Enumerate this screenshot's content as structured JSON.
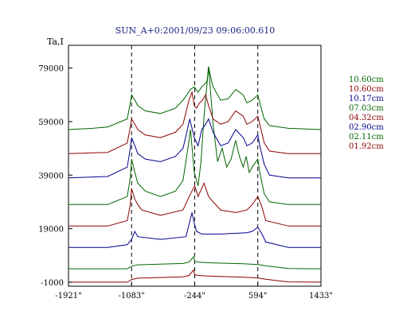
{
  "chart_data": {
    "type": "line",
    "title": "SUN_A+0:2001/09/23 09:06:00.610",
    "ylabel": "Ta,I",
    "xlabel": "",
    "x_ticks": [
      "-1921\"",
      "-1083\"",
      "-244\"",
      "594\"",
      "1433\""
    ],
    "x_tick_values": [
      -1921,
      -1083,
      -244,
      594,
      1433
    ],
    "y_ticks": [
      "79000",
      "59000",
      "39000",
      "19000",
      "-1000"
    ],
    "y_tick_values": [
      79000,
      59000,
      39000,
      19000,
      -1000
    ],
    "xlim": [
      -1921,
      1433
    ],
    "ylim": [
      -2500,
      87500
    ],
    "vlines": [
      -1083,
      -244,
      594
    ],
    "grid": false,
    "legend_position": "right",
    "series": [
      {
        "name": "01.92cm",
        "color": "#8b0000",
        "baseline": -1000,
        "x": [
          -1921,
          -1140,
          -1083,
          -1000,
          -400,
          -320,
          -260,
          -244,
          -210,
          -150,
          0,
          400,
          594,
          700,
          1000,
          1433
        ],
        "y": [
          -1000,
          -1000,
          0,
          500,
          1000,
          1500,
          3500,
          1800,
          1600,
          1400,
          1200,
          900,
          600,
          100,
          -900,
          -1000
        ]
      },
      {
        "name": "02.11cm",
        "color": "#006400",
        "baseline": 4000,
        "x": [
          -1921,
          -1140,
          -1083,
          -1000,
          -400,
          -320,
          -260,
          -244,
          -210,
          -150,
          0,
          400,
          594,
          700,
          1000,
          1433
        ],
        "y": [
          4000,
          4000,
          5000,
          5500,
          6000,
          6500,
          8500,
          6800,
          6600,
          6400,
          6200,
          5900,
          5600,
          5100,
          4100,
          4000
        ]
      },
      {
        "name": "02.90cm",
        "color": "#00008b",
        "baseline": 12000,
        "x": [
          -1921,
          -1400,
          -1140,
          -1083,
          -1040,
          -1000,
          -700,
          -360,
          -280,
          -250,
          -220,
          -150,
          100,
          450,
          520,
          594,
          650,
          700,
          1000,
          1433
        ],
        "y": [
          12000,
          12000,
          13000,
          15000,
          18000,
          16000,
          15000,
          16000,
          25000,
          21000,
          18000,
          17000,
          17000,
          17500,
          18000,
          19500,
          17000,
          14000,
          12000,
          12000
        ]
      },
      {
        "name": "04.32cm",
        "color": "#8b0000",
        "baseline": 20000,
        "x": [
          -1921,
          -1400,
          -1140,
          -1100,
          -1083,
          -1040,
          -1000,
          -950,
          -700,
          -400,
          -300,
          -244,
          -200,
          -120,
          -60,
          0,
          100,
          300,
          450,
          520,
          594,
          650,
          700,
          1000,
          1433
        ],
        "y": [
          20000,
          20000,
          22000,
          28000,
          34000,
          30000,
          28000,
          26000,
          24000,
          26000,
          32000,
          35000,
          31000,
          36000,
          31000,
          29000,
          26000,
          25000,
          26000,
          28000,
          31000,
          27000,
          22000,
          20000,
          20000
        ]
      },
      {
        "name": "07.03cm",
        "color": "#006400",
        "baseline": 28000,
        "x": [
          -1921,
          -1400,
          -1140,
          -1100,
          -1083,
          -1040,
          -1000,
          -900,
          -700,
          -500,
          -400,
          -330,
          -300,
          -250,
          -200,
          -160,
          -120,
          -60,
          0,
          60,
          120,
          180,
          240,
          300,
          350,
          400,
          440,
          480,
          520,
          594,
          620,
          680,
          750,
          1000,
          1433
        ],
        "y": [
          28000,
          28000,
          31000,
          38000,
          45000,
          40000,
          36000,
          33000,
          31000,
          33000,
          37000,
          50000,
          56000,
          40000,
          35000,
          44000,
          61000,
          79500,
          58000,
          44000,
          49000,
          42000,
          45000,
          52000,
          46000,
          42000,
          46000,
          40000,
          42000,
          45000,
          40000,
          32000,
          29000,
          28000,
          28000
        ]
      },
      {
        "name": "10.17cm",
        "color": "#00008b",
        "baseline": 38000,
        "x": [
          -1921,
          -1400,
          -1140,
          -1100,
          -1083,
          -1040,
          -1000,
          -900,
          -700,
          -500,
          -400,
          -350,
          -310,
          -250,
          -200,
          -150,
          -100,
          -60,
          0,
          100,
          200,
          300,
          400,
          450,
          520,
          594,
          620,
          680,
          750,
          1000,
          1433
        ],
        "y": [
          38000,
          38500,
          42000,
          49000,
          53000,
          50000,
          47000,
          45000,
          44000,
          46000,
          49000,
          55000,
          60000,
          53000,
          50000,
          56000,
          58000,
          60000,
          55000,
          50000,
          51000,
          56000,
          53000,
          50000,
          51000,
          54000,
          50000,
          43000,
          39000,
          38000,
          38000
        ]
      },
      {
        "name": "10.60cm",
        "color": "#8b0000",
        "baseline": 47000,
        "x": [
          -1921,
          -1400,
          -1140,
          -1100,
          -1083,
          -1040,
          -1000,
          -900,
          -700,
          -500,
          -400,
          -320,
          -280,
          -250,
          -220,
          -180,
          -140,
          -100,
          -60,
          0,
          100,
          200,
          300,
          400,
          450,
          520,
          594,
          620,
          680,
          750,
          1000,
          1433
        ],
        "y": [
          47000,
          47500,
          51000,
          57000,
          60000,
          58000,
          56000,
          54000,
          53000,
          55000,
          58000,
          67000,
          70000,
          65000,
          64000,
          66000,
          67000,
          69000,
          65000,
          60000,
          58000,
          59000,
          63000,
          61000,
          58000,
          59000,
          61000,
          58000,
          51000,
          48000,
          47000,
          47000
        ]
      },
      {
        "name": "10.60cm",
        "color": "#006400",
        "baseline": 56000,
        "x": [
          -1921,
          -1600,
          -1400,
          -1140,
          -1100,
          -1083,
          -1040,
          -1000,
          -900,
          -700,
          -500,
          -400,
          -300,
          -250,
          -200,
          -150,
          -80,
          -60,
          -20,
          0,
          100,
          200,
          300,
          400,
          450,
          520,
          594,
          620,
          680,
          750,
          1000,
          1433
        ],
        "y": [
          56000,
          56500,
          57000,
          60000,
          66000,
          69000,
          67000,
          65000,
          63000,
          62000,
          64000,
          67000,
          71000,
          72000,
          70000,
          72000,
          74000,
          79500,
          74000,
          72000,
          67000,
          67500,
          71000,
          69000,
          66000,
          67000,
          69000,
          66000,
          60000,
          57500,
          56500,
          56000
        ]
      }
    ]
  }
}
